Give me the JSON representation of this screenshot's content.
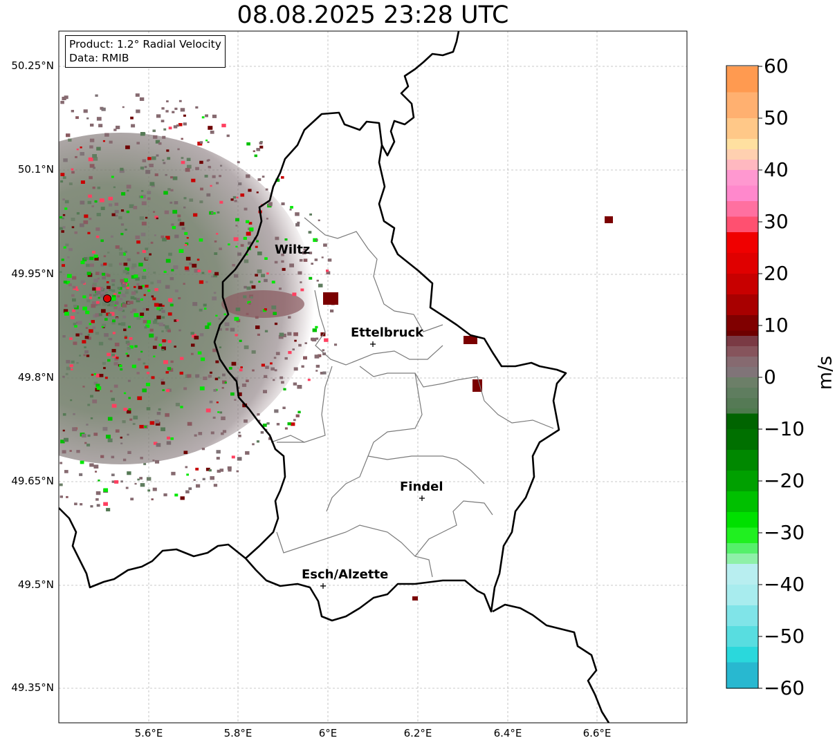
{
  "title": "08.08.2025 23:28 UTC",
  "info": {
    "product": "Product: 1.2° Radial Velocity",
    "data_source": "Data: RMIB"
  },
  "axes": {
    "lat_labels": [
      "50.25°N",
      "50.1°N",
      "49.95°N",
      "49.8°N",
      "49.65°N",
      "49.5°N",
      "49.35°N"
    ],
    "lon_labels": [
      "5.6°E",
      "5.8°E",
      "6°E",
      "6.2°E",
      "6.4°E",
      "6.6°E"
    ]
  },
  "cities": [
    {
      "name": "Wiltz"
    },
    {
      "name": "Ettelbruck"
    },
    {
      "name": "Findel"
    },
    {
      "name": "Esch/Alzette"
    }
  ],
  "colorbar": {
    "label": "m/s",
    "ticks": [
      "60",
      "50",
      "40",
      "30",
      "20",
      "10",
      "0",
      "−10",
      "−20",
      "−30",
      "−40",
      "−50",
      "−60"
    ],
    "min": -60,
    "max": 60,
    "colors": {
      "deep_blue": "#1f7fc4",
      "cyan": "#2ad8dc",
      "light_cyan": "#b8eef0",
      "light_green": "#8ef0a8",
      "bright_green": "#00e800",
      "dark_green": "#006400",
      "grey_green": "#5f7d5f",
      "grey_mauve": "#866a70",
      "dark_red": "#6e0000",
      "red": "#f00000",
      "pink": "#ff88cc",
      "peach": "#ffd9a8",
      "orange": "#ff9a50"
    }
  },
  "radar_site": {
    "color": "#e00000"
  }
}
